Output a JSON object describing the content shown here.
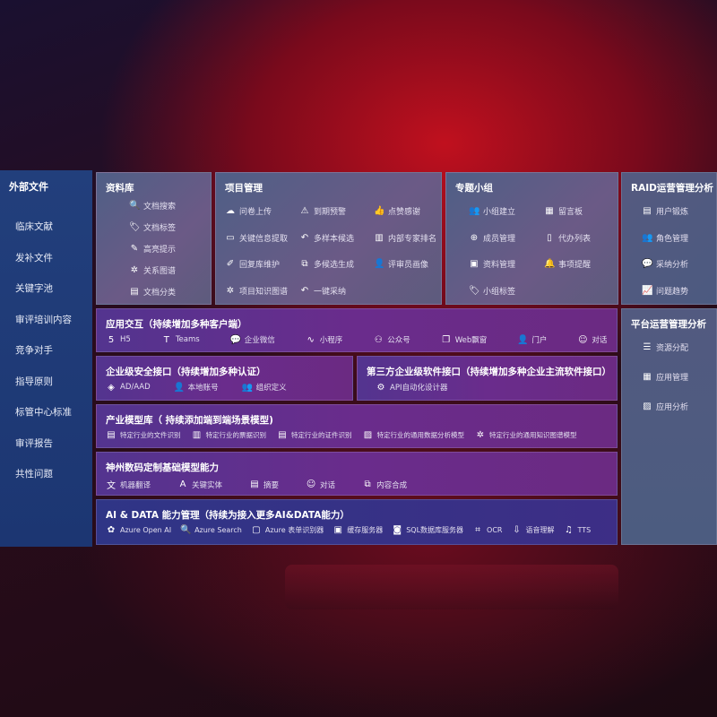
{
  "sidebar": {
    "title": "外部文件",
    "items": [
      "临床文献",
      "发补文件",
      "关键字池",
      "审评培训内容",
      "竞争对手",
      "指导原则",
      "标管中心标准",
      "审评报告",
      "共性问题"
    ]
  },
  "library": {
    "title": "资料库",
    "items": [
      {
        "icon": "doc-search-icon",
        "label": "文档搜索"
      },
      {
        "icon": "tag-icon",
        "label": "文档标签"
      },
      {
        "icon": "pen-icon",
        "label": "高亮提示"
      },
      {
        "icon": "graph-icon",
        "label": "关系图谱"
      },
      {
        "icon": "doc-category-icon",
        "label": "文档分类"
      }
    ]
  },
  "project": {
    "title": "项目管理",
    "items": [
      {
        "icon": "cloud-upload-icon",
        "label": "问卷上传"
      },
      {
        "icon": "alarm-icon",
        "label": "到期预警"
      },
      {
        "icon": "thumbs-up-icon",
        "label": "点赞感谢"
      },
      {
        "icon": "window-icon",
        "label": "关键信息提取"
      },
      {
        "icon": "reply-icon",
        "label": "多样本候选"
      },
      {
        "icon": "ranking-icon",
        "label": "内部专家排名"
      },
      {
        "icon": "edit-icon",
        "label": "回复库维护"
      },
      {
        "icon": "puzzle-icon",
        "label": "多候选生成"
      },
      {
        "icon": "user-icon",
        "label": "评审员画像"
      },
      {
        "icon": "graph-icon",
        "label": "项目知识图谱"
      },
      {
        "icon": "reply-icon",
        "label": "一键采纳"
      }
    ]
  },
  "group": {
    "title": "专题小组",
    "items": [
      {
        "icon": "users-icon",
        "label": "小组建立"
      },
      {
        "icon": "bbs-icon",
        "label": "留言板"
      },
      {
        "icon": "user-add-icon",
        "label": "成员管理"
      },
      {
        "icon": "clipboard-icon",
        "label": "代办列表"
      },
      {
        "icon": "folder-icon",
        "label": "资料管理"
      },
      {
        "icon": "bell-icon",
        "label": "事项提醒"
      },
      {
        "icon": "tag-icon",
        "label": "小组标签"
      }
    ]
  },
  "raid": {
    "title": "RAID运营管理分析",
    "items": [
      {
        "icon": "id-card-icon",
        "label": "用户锻炼"
      },
      {
        "icon": "users-icon",
        "label": "角色管理"
      },
      {
        "icon": "qa-icon",
        "label": "采纳分析"
      },
      {
        "icon": "trend-icon",
        "label": "问题趋势"
      }
    ]
  },
  "platform": {
    "title": "平台运营管理分析",
    "items": [
      {
        "icon": "list-icon",
        "label": "资源分配"
      },
      {
        "icon": "apps-icon",
        "label": "应用管理"
      },
      {
        "icon": "chart-icon",
        "label": "应用分析"
      }
    ]
  },
  "interaction": {
    "title": "应用交互（持续增加多种客户端）",
    "items": [
      {
        "icon": "html5-icon",
        "label": "H5"
      },
      {
        "icon": "teams-icon",
        "label": "Teams"
      },
      {
        "icon": "wechat-icon",
        "label": "企业微信"
      },
      {
        "icon": "mini-program-icon",
        "label": "小程序"
      },
      {
        "icon": "official-account-icon",
        "label": "公众号"
      },
      {
        "icon": "web-window-icon",
        "label": "Web飘窗"
      },
      {
        "icon": "portal-icon",
        "label": "门户"
      },
      {
        "icon": "chat-icon",
        "label": "对话"
      }
    ]
  },
  "security": {
    "title": "企业级安全接口（持续增加多种认证）",
    "items": [
      {
        "icon": "ad-icon",
        "label": "AD/AAD"
      },
      {
        "icon": "local-account-icon",
        "label": "本地账号"
      },
      {
        "icon": "org-icon",
        "label": "组织定义"
      }
    ]
  },
  "thirdparty": {
    "title": "第三方企业级软件接口（持续增加多种企业主流软件接口）",
    "items": [
      {
        "icon": "gear-icon",
        "label": "API自动化设计器"
      }
    ]
  },
  "industry": {
    "title": "产业模型库（ 持续添加端到端场景模型)",
    "items": [
      {
        "icon": "doc-icon",
        "label": "特定行业的文件识别"
      },
      {
        "icon": "receipt-icon",
        "label": "特定行业的票据识别"
      },
      {
        "icon": "id-card-icon",
        "label": "特定行业的证件识别"
      },
      {
        "icon": "image-icon",
        "label": "特定行业的通用数据分析模型"
      },
      {
        "icon": "graph-icon",
        "label": "特定行业的通用知识图谱模型"
      }
    ]
  },
  "base": {
    "title": "神州数码定制基础模型能力",
    "items": [
      {
        "icon": "translate-icon",
        "label": "机器翻译"
      },
      {
        "icon": "entity-icon",
        "label": "关键实体"
      },
      {
        "icon": "summary-icon",
        "label": "摘要"
      },
      {
        "icon": "chat-icon",
        "label": "对话"
      },
      {
        "icon": "compose-icon",
        "label": "内容合成"
      }
    ]
  },
  "aidata": {
    "title": "AI & DATA 能力管理（持续为接入更多AI&DATA能力）",
    "items": [
      {
        "icon": "openai-icon",
        "label": "Azure Open AI"
      },
      {
        "icon": "search-icon",
        "label": "Azure Search"
      },
      {
        "icon": "form-icon",
        "label": "Azure 表单识别器"
      },
      {
        "icon": "cache-icon",
        "label": "缓存服务器"
      },
      {
        "icon": "database-icon",
        "label": "SQL数据库服务器"
      },
      {
        "icon": "ocr-icon",
        "label": "OCR"
      },
      {
        "icon": "speech-icon",
        "label": "语音理解"
      },
      {
        "icon": "tts-icon",
        "label": "TTS"
      }
    ]
  }
}
